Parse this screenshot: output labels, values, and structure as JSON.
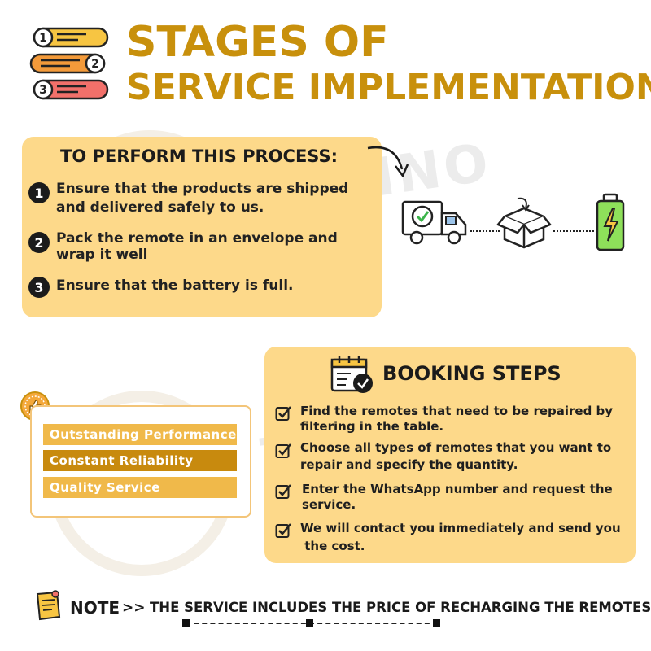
{
  "title": {
    "line1": "STAGES OF",
    "line2": "SERVICE IMPLEMENTATION"
  },
  "watermark": {
    "text": "TECHNO",
    "subtext": "LOCK"
  },
  "process": {
    "heading": "TO PERFORM THIS PROCESS:",
    "steps": [
      {
        "num": "1",
        "lines": [
          "Ensure that the products are shipped",
          "and delivered safely to us."
        ]
      },
      {
        "num": "2",
        "lines": [
          "Pack the remote in an envelope and",
          "wrap it well"
        ]
      },
      {
        "num": "3",
        "lines": [
          "Ensure that the battery is full."
        ]
      }
    ]
  },
  "features": [
    {
      "label": "Outstanding Performance",
      "color": "#f0b94a"
    },
    {
      "label": "Constant Reliability",
      "color": "#c88a0e"
    },
    {
      "label": "Quality Service",
      "color": "#f0b94a"
    }
  ],
  "booking": {
    "heading": "BOOKING STEPS",
    "steps": [
      {
        "lines": [
          "Find the remotes that need to be repaired by",
          "filtering in the table."
        ]
      },
      {
        "lines": [
          "Choose all types of remotes that you want to",
          "repair and specify the quantity."
        ]
      },
      {
        "lines": [
          "Enter the WhatsApp number and request the",
          "service."
        ]
      },
      {
        "lines": [
          "We will contact you immediately and send you",
          " the cost."
        ]
      }
    ]
  },
  "note": {
    "label": "NOTE",
    "arrow": ">>",
    "text": "THE SERVICE INCLUDES THE PRICE OF RECHARGING THE REMOTES."
  },
  "colors": {
    "accent": "#c8900c",
    "panel": "#fdd98a",
    "dark": "#1b1b1b"
  },
  "icons": [
    "list-steps-icon",
    "delivery-truck-icon",
    "package-box-icon",
    "battery-full-icon",
    "thumbs-up-badge-icon",
    "calendar-check-icon",
    "checkbox-icon",
    "note-pin-icon"
  ]
}
